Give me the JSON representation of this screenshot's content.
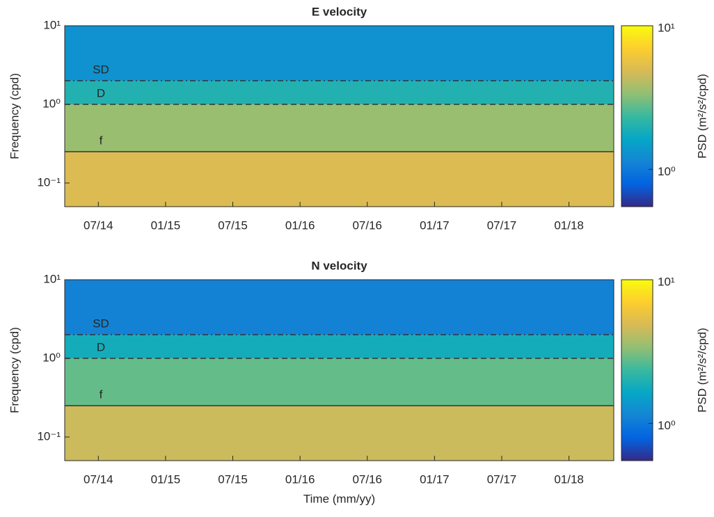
{
  "chart_data": [
    {
      "type": "heatmap",
      "title": "E velocity",
      "ylabel": "Frequency (cpd)",
      "xlabel": null,
      "xlim": [
        "04/14",
        "05/18"
      ],
      "xticks": [
        "07/14",
        "01/15",
        "07/15",
        "01/16",
        "07/16",
        "01/17",
        "07/17",
        "01/18"
      ],
      "ylim": [
        0.05,
        10
      ],
      "log_y": true,
      "yticks": [
        {
          "value": 0.1,
          "label": "10⁻¹"
        },
        {
          "value": 1,
          "label": "10⁰"
        },
        {
          "value": 10,
          "label": "10¹"
        }
      ],
      "freq_edges": [
        0.05,
        0.25,
        1,
        2,
        10
      ],
      "psd": [
        5,
        3.5,
        2,
        1.3
      ],
      "lines": [
        {
          "label": "SD",
          "value": 2,
          "style": "dashdot"
        },
        {
          "label": "D",
          "value": 1,
          "style": "dashed"
        },
        {
          "label": "f",
          "value": 0.25,
          "style": "solid"
        }
      ],
      "colorbar": {
        "label": "PSD (m²/s²/cpd)",
        "clim": [
          0.55,
          10
        ],
        "ticks": [
          {
            "value": 1,
            "label": "10⁰"
          },
          {
            "value": 10,
            "label": "10¹"
          }
        ]
      }
    },
    {
      "type": "heatmap",
      "title": "N velocity",
      "ylabel": "Frequency (cpd)",
      "xlabel": "Time (mm/yy)",
      "xlim": [
        "04/14",
        "05/18"
      ],
      "xticks": [
        "07/14",
        "01/15",
        "07/15",
        "01/16",
        "07/16",
        "01/17",
        "07/17",
        "01/18"
      ],
      "ylim": [
        0.05,
        10
      ],
      "log_y": true,
      "yticks": [
        {
          "value": 0.1,
          "label": "10⁻¹"
        },
        {
          "value": 1,
          "label": "10⁰"
        },
        {
          "value": 10,
          "label": "10¹"
        }
      ],
      "freq_edges": [
        0.05,
        0.25,
        1,
        2,
        10
      ],
      "psd": [
        4.5,
        2.8,
        1.8,
        1.1
      ],
      "lines": [
        {
          "label": "SD",
          "value": 2,
          "style": "dashdot"
        },
        {
          "label": "D",
          "value": 1,
          "style": "dashed"
        },
        {
          "label": "f",
          "value": 0.25,
          "style": "solid"
        }
      ],
      "colorbar": {
        "label": "PSD (m²/s²/cpd)",
        "clim": [
          0.55,
          10
        ],
        "ticks": [
          {
            "value": 1,
            "label": "10⁰"
          },
          {
            "value": 10,
            "label": "10¹"
          }
        ]
      }
    }
  ]
}
